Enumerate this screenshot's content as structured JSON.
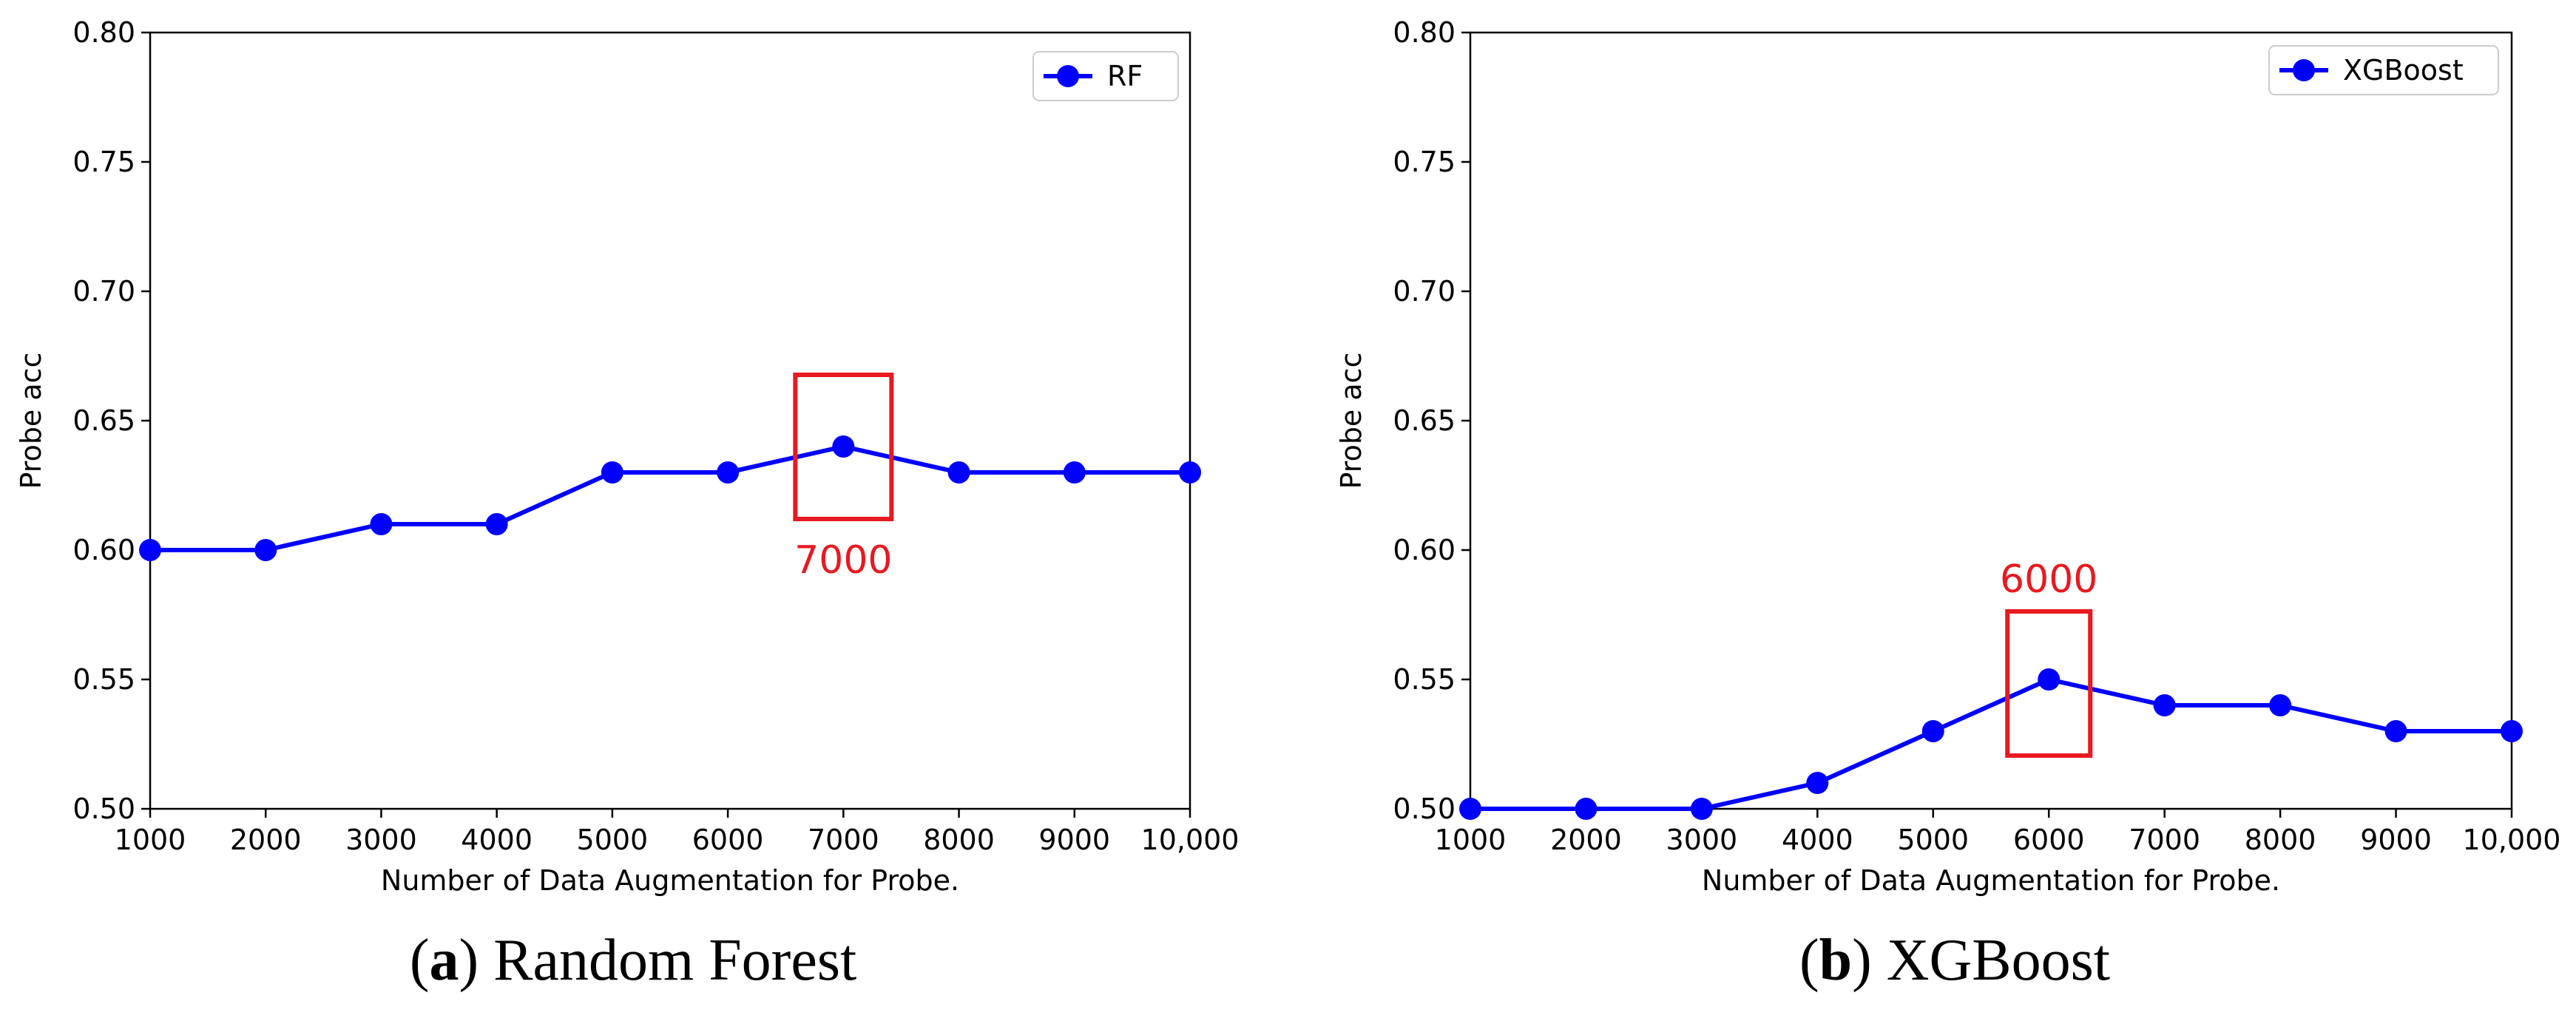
{
  "chart_data": [
    {
      "type": "line",
      "xlabel": "Number of Data Augmentation for Probe.",
      "ylabel": "Probe acc",
      "xlim": [
        1000,
        10000
      ],
      "ylim": [
        0.5,
        0.8
      ],
      "x": [
        1000,
        2000,
        3000,
        4000,
        5000,
        6000,
        7000,
        8000,
        9000,
        10000
      ],
      "x_tick_labels": [
        "1000",
        "2000",
        "3000",
        "4000",
        "5000",
        "6000",
        "7000",
        "8000",
        "9000",
        "10,000"
      ],
      "y_tick_labels": [
        "0.50",
        "0.55",
        "0.60",
        "0.65",
        "0.70",
        "0.75",
        "0.80"
      ],
      "y_ticks": [
        0.5,
        0.55,
        0.6,
        0.65,
        0.7,
        0.75,
        0.8
      ],
      "series": [
        {
          "name": "RF",
          "color": "#0000ff",
          "values": [
            0.6,
            0.6,
            0.61,
            0.61,
            0.63,
            0.63,
            0.64,
            0.63,
            0.63,
            0.63
          ]
        }
      ],
      "legend_position": "top-right",
      "grid": false,
      "annotation": {
        "text": "7000",
        "x": 7000,
        "color": "#e8191f",
        "label_position": "below"
      },
      "caption": {
        "letter": "a",
        "text": "Random Forest"
      }
    },
    {
      "type": "line",
      "xlabel": "Number of Data Augmentation for Probe.",
      "ylabel": "Probe acc",
      "xlim": [
        1000,
        10000
      ],
      "ylim": [
        0.5,
        0.8
      ],
      "x": [
        1000,
        2000,
        3000,
        4000,
        5000,
        6000,
        7000,
        8000,
        9000,
        10000
      ],
      "x_tick_labels": [
        "1000",
        "2000",
        "3000",
        "4000",
        "5000",
        "6000",
        "7000",
        "8000",
        "9000",
        "10,000"
      ],
      "y_tick_labels": [
        "0.50",
        "0.55",
        "0.60",
        "0.65",
        "0.70",
        "0.75",
        "0.80"
      ],
      "y_ticks": [
        0.5,
        0.55,
        0.6,
        0.65,
        0.7,
        0.75,
        0.8
      ],
      "series": [
        {
          "name": "XGBoost",
          "color": "#0000ff",
          "values": [
            0.5,
            0.5,
            0.5,
            0.51,
            0.53,
            0.55,
            0.54,
            0.54,
            0.53,
            0.53
          ]
        }
      ],
      "legend_position": "top-right",
      "grid": false,
      "annotation": {
        "text": "6000",
        "x": 6000,
        "color": "#e8191f",
        "label_position": "above"
      },
      "caption": {
        "letter": "b",
        "text": "XGBoost"
      }
    }
  ]
}
